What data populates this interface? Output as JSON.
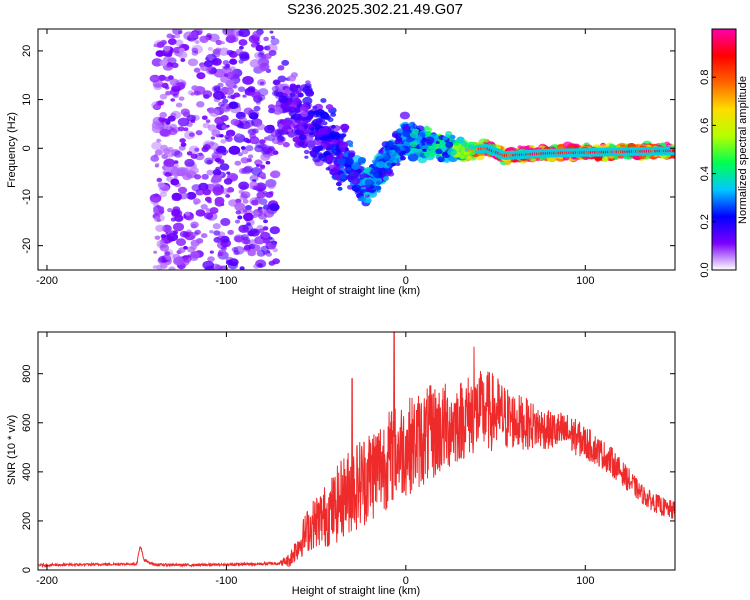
{
  "title": "S236.2025.302.21.49.G07",
  "chart_data": [
    {
      "type": "heatmap",
      "xlabel": "Height of straight line (km)",
      "ylabel": "Frequency (Hz)",
      "xlim": [
        -205,
        150
      ],
      "ylim": [
        -25,
        24.5
      ],
      "x_ticks": [
        -200,
        -100,
        0,
        100
      ],
      "y_ticks": [
        -20,
        -10,
        0,
        10,
        20
      ],
      "colorbar": {
        "label": "Normalized spectral amplitude",
        "range": [
          0,
          1
        ],
        "ticks": [
          0.0,
          0.2,
          0.4,
          0.6,
          0.8
        ],
        "colors": [
          "#ffffff",
          "#7b00ff",
          "#0000ff",
          "#00c8ff",
          "#00ff50",
          "#b4ff00",
          "#ffdc00",
          "#ff6400",
          "#ff0000",
          "#ff00aa"
        ]
      },
      "description_points": [
        {
          "x": -140,
          "f_center": 0,
          "spread": 24,
          "amplitude": 0.1
        },
        {
          "x": -65,
          "f_center": 8,
          "spread": 6,
          "amplitude": 0.15
        },
        {
          "x": -40,
          "f_center": 1,
          "spread": 5,
          "amplitude": 0.2
        },
        {
          "x": -22,
          "f_center": -8,
          "spread": 3,
          "amplitude": 0.3
        },
        {
          "x": 0,
          "f_center": 2,
          "spread": 3,
          "amplitude": 0.3
        },
        {
          "x": 30,
          "f_center": -0.5,
          "spread": 1.5,
          "amplitude": 0.5
        },
        {
          "x": 45,
          "f_center": 0,
          "spread": 1,
          "amplitude": 0.9
        },
        {
          "x": 55,
          "f_center": -1.5,
          "spread": 1,
          "amplitude": 0.9
        },
        {
          "x": 80,
          "f_center": -1,
          "spread": 1,
          "amplitude": 0.95
        },
        {
          "x": 150,
          "f_center": -0.5,
          "spread": 1,
          "amplitude": 0.9
        }
      ]
    },
    {
      "type": "line",
      "xlabel": "Height of straight line (km)",
      "ylabel": "SNR (10 * v/v)",
      "xlim": [
        -205,
        150
      ],
      "ylim": [
        0,
        970
      ],
      "x_ticks": [
        -200,
        -100,
        0,
        100
      ],
      "y_ticks": [
        0,
        200,
        400,
        600,
        800
      ],
      "line_color": "#ee2a2a",
      "series": [
        {
          "name": "SNR",
          "x": [
            -205,
            -180,
            -150,
            -148,
            -146,
            -140,
            -120,
            -100,
            -80,
            -70,
            -65,
            -60,
            -55,
            -50,
            -45,
            -40,
            -35,
            -30,
            -25,
            -20,
            -15,
            -10,
            -5,
            -3,
            0,
            5,
            10,
            15,
            20,
            25,
            30,
            35,
            40,
            45,
            50,
            55,
            60,
            70,
            80,
            90,
            100,
            110,
            115,
            120,
            125,
            130,
            135,
            140,
            145,
            150
          ],
          "values": [
            20,
            22,
            25,
            100,
            40,
            22,
            20,
            22,
            25,
            28,
            40,
            100,
            160,
            200,
            220,
            250,
            300,
            330,
            360,
            390,
            420,
            450,
            480,
            490,
            500,
            520,
            540,
            560,
            575,
            590,
            610,
            630,
            640,
            650,
            640,
            620,
            610,
            590,
            570,
            560,
            520,
            470,
            440,
            400,
            360,
            320,
            290,
            270,
            250,
            240
          ],
          "noise": [
            5,
            5,
            5,
            10,
            5,
            5,
            5,
            5,
            6,
            8,
            30,
            60,
            90,
            110,
            130,
            150,
            170,
            180,
            190,
            200,
            200,
            200,
            200,
            200,
            200,
            200,
            200,
            200,
            190,
            180,
            170,
            170,
            170,
            170,
            160,
            140,
            120,
            100,
            80,
            80,
            70,
            60,
            60,
            50,
            50,
            40,
            40,
            40,
            40,
            40
          ]
        }
      ],
      "peaks": [
        {
          "x": -6.5,
          "value": 970
        },
        {
          "x": -30,
          "value": 780
        },
        {
          "x": 38,
          "value": 910
        }
      ]
    }
  ]
}
